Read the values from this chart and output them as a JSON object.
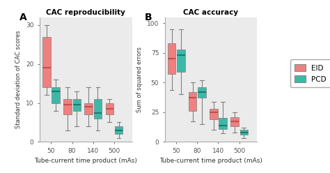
{
  "title_a": "CAC reproducibility",
  "title_b": "CAC accuracy",
  "label_a": "A",
  "label_b": "B",
  "ylabel_a": "Standard deviation of CAC scores",
  "ylabel_b": "Sum of squared errors",
  "xlabel": "Tube-current time product (mAs)",
  "xtick_labels": [
    "50",
    "80",
    "140",
    "500"
  ],
  "ylim_a": [
    0,
    32
  ],
  "ylim_b": [
    0,
    105
  ],
  "yticks_a": [
    0,
    10,
    20,
    30
  ],
  "yticks_b": [
    0,
    25,
    50,
    75,
    100
  ],
  "background_color": "#ebebeb",
  "fig_background": "#ffffff",
  "eid_color": "#F08080",
  "pcd_color": "#3db8a8",
  "eid_median_color": "#c0504d",
  "pcd_median_color": "#1a7a70",
  "whisker_color": "#808080",
  "legend_labels": [
    "EID",
    "PCD"
  ],
  "panel_a": {
    "eid": [
      {
        "whislo": 12,
        "q1": 14,
        "med": 19,
        "q3": 27,
        "whishi": 30
      },
      {
        "whislo": 3,
        "q1": 7,
        "med": 9.5,
        "q3": 11,
        "whishi": 14
      },
      {
        "whislo": 4,
        "q1": 7,
        "med": 9,
        "q3": 10,
        "whishi": 14
      },
      {
        "whislo": 5,
        "q1": 7,
        "med": 8.5,
        "q3": 10,
        "whishi": 11
      }
    ],
    "pcd": [
      {
        "whislo": 8,
        "q1": 10,
        "med": 13,
        "q3": 14,
        "whishi": 16
      },
      {
        "whislo": 4,
        "q1": 8,
        "med": 9.5,
        "q3": 11,
        "whishi": 13
      },
      {
        "whislo": 3,
        "q1": 6,
        "med": 7.5,
        "q3": 11,
        "whishi": 14
      },
      {
        "whislo": 1,
        "q1": 2,
        "med": 3,
        "q3": 4,
        "whishi": 5
      }
    ]
  },
  "panel_b": {
    "eid": [
      {
        "whislo": 44,
        "q1": 57,
        "med": 70,
        "q3": 83,
        "whishi": 95
      },
      {
        "whislo": 17,
        "q1": 26,
        "med": 37,
        "q3": 42,
        "whishi": 50
      },
      {
        "whislo": 10,
        "q1": 19,
        "med": 25,
        "q3": 28,
        "whishi": 34
      },
      {
        "whislo": 8,
        "q1": 13,
        "med": 17,
        "q3": 21,
        "whishi": 25
      }
    ],
    "pcd": [
      {
        "whislo": 40,
        "q1": 59,
        "med": 73,
        "q3": 78,
        "whishi": 95
      },
      {
        "whislo": 15,
        "q1": 37,
        "med": 42,
        "q3": 46,
        "whishi": 52
      },
      {
        "whislo": 7,
        "q1": 11,
        "med": 14,
        "q3": 20,
        "whishi": 34
      },
      {
        "whislo": 3,
        "q1": 6,
        "med": 8,
        "q3": 10,
        "whishi": 12
      }
    ]
  }
}
